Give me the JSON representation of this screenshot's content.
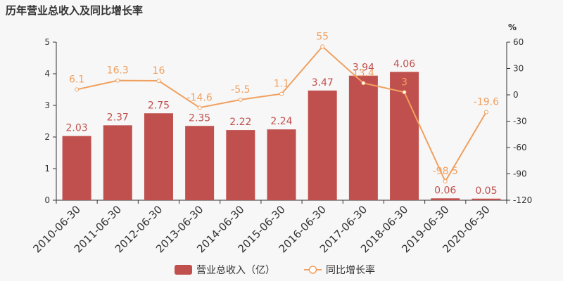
{
  "chart_data": {
    "type": "bar",
    "title": "历年营业总收入及同比增长率",
    "categories": [
      "2010-06-30",
      "2011-06-30",
      "2012-06-30",
      "2013-06-30",
      "2014-06-30",
      "2015-06-30",
      "2016-06-30",
      "2017-06-30",
      "2018-06-30",
      "2019-06-30",
      "2020-06-30"
    ],
    "series": [
      {
        "name": "营业总收入（亿）",
        "type": "bar",
        "axis": "left",
        "values": [
          2.03,
          2.37,
          2.75,
          2.35,
          2.22,
          2.24,
          3.47,
          3.94,
          4.06,
          0.06,
          0.05
        ],
        "labels": [
          "2.03",
          "2.37",
          "2.75",
          "2.35",
          "2.22",
          "2.24",
          "3.47",
          "3.94",
          "4.06",
          "0.06",
          "0.05"
        ]
      },
      {
        "name": "同比增长率",
        "type": "line",
        "axis": "right",
        "values": [
          6.1,
          16.3,
          16,
          -14.6,
          -5.5,
          1.1,
          55,
          13.4,
          3,
          -98.5,
          -19.6
        ],
        "labels": [
          "6.1",
          "16.3",
          "16",
          "-14.6",
          "-5.5",
          "1.1",
          "55",
          "13.4",
          "3",
          "-98.5",
          "-19.6"
        ]
      }
    ],
    "y_left": {
      "ylim": [
        0,
        5
      ],
      "ticks": [
        "0",
        "1",
        "2",
        "3",
        "4",
        "5"
      ]
    },
    "y_right": {
      "ylim": [
        -120,
        60
      ],
      "ticks": [
        "-120",
        "-90",
        "-60",
        "-30",
        "0",
        "30",
        "60"
      ],
      "unit": "%"
    },
    "legend_position": "bottom-center",
    "grid": false
  },
  "colors": {
    "bar": "#c0504d",
    "line": "#f0a060",
    "axis_text": "#333333",
    "bar_label": "#c0504d",
    "line_label": "#f0a060"
  }
}
